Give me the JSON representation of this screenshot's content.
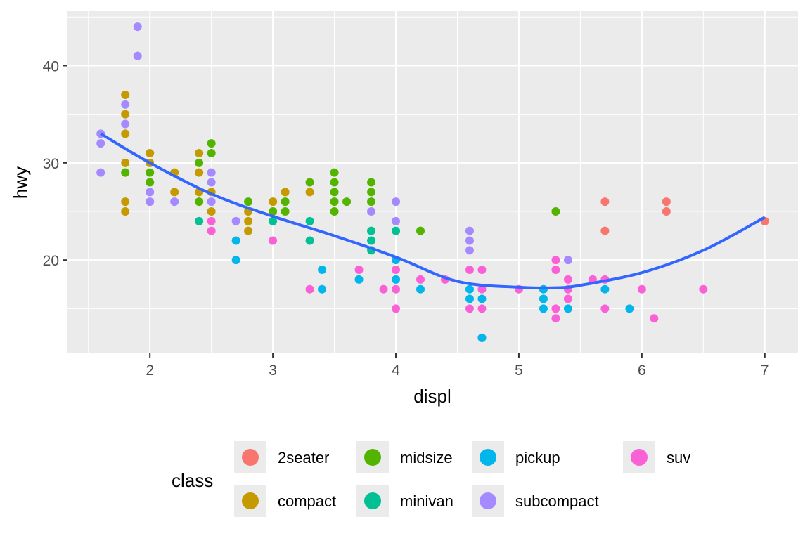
{
  "chart_data": {
    "type": "scatter",
    "xlabel": "displ",
    "ylabel": "hwy",
    "xlim": [
      1.33,
      7.27
    ],
    "ylim": [
      10.4,
      45.6
    ],
    "x_ticks": [
      2,
      3,
      4,
      5,
      6,
      7
    ],
    "y_ticks": [
      20,
      30,
      40
    ],
    "grid": true,
    "legend": {
      "title": "class",
      "placement": "bottom",
      "entries": [
        {
          "name": "2seater",
          "color": "#F8766D"
        },
        {
          "name": "compact",
          "color": "#C49A00"
        },
        {
          "name": "midsize",
          "color": "#53B400"
        },
        {
          "name": "minivan",
          "color": "#00C094"
        },
        {
          "name": "pickup",
          "color": "#00B6EB"
        },
        {
          "name": "subcompact",
          "color": "#A58AFF"
        },
        {
          "name": "suv",
          "color": "#FB61D7"
        }
      ]
    },
    "points": [
      [
        1.6,
        33,
        "subcompact"
      ],
      [
        1.6,
        32,
        "subcompact"
      ],
      [
        1.6,
        29,
        "subcompact"
      ],
      [
        1.8,
        37,
        "compact"
      ],
      [
        1.8,
        35,
        "compact"
      ],
      [
        1.8,
        33,
        "compact"
      ],
      [
        1.8,
        36,
        "subcompact"
      ],
      [
        1.8,
        34,
        "subcompact"
      ],
      [
        1.8,
        30,
        "compact"
      ],
      [
        1.8,
        29,
        "midsize"
      ],
      [
        1.8,
        26,
        "compact"
      ],
      [
        1.8,
        25,
        "compact"
      ],
      [
        1.9,
        44,
        "subcompact"
      ],
      [
        1.9,
        41,
        "subcompact"
      ],
      [
        2.0,
        31,
        "compact"
      ],
      [
        2.0,
        30,
        "compact"
      ],
      [
        2.0,
        29,
        "midsize"
      ],
      [
        2.0,
        28,
        "midsize"
      ],
      [
        2.0,
        27,
        "subcompact"
      ],
      [
        2.0,
        26,
        "subcompact"
      ],
      [
        2.2,
        29,
        "compact"
      ],
      [
        2.2,
        27,
        "compact"
      ],
      [
        2.2,
        26,
        "subcompact"
      ],
      [
        2.4,
        31,
        "compact"
      ],
      [
        2.4,
        30,
        "midsize"
      ],
      [
        2.4,
        29,
        "compact"
      ],
      [
        2.4,
        27,
        "compact"
      ],
      [
        2.4,
        26,
        "midsize"
      ],
      [
        2.4,
        24,
        "minivan"
      ],
      [
        2.5,
        32,
        "midsize"
      ],
      [
        2.5,
        31,
        "midsize"
      ],
      [
        2.5,
        29,
        "subcompact"
      ],
      [
        2.5,
        28,
        "subcompact"
      ],
      [
        2.5,
        27,
        "compact"
      ],
      [
        2.5,
        26,
        "subcompact"
      ],
      [
        2.5,
        25,
        "compact"
      ],
      [
        2.5,
        24,
        "suv"
      ],
      [
        2.5,
        23,
        "suv"
      ],
      [
        2.7,
        24,
        "subcompact"
      ],
      [
        2.7,
        22,
        "pickup"
      ],
      [
        2.7,
        20,
        "pickup"
      ],
      [
        2.8,
        26,
        "midsize"
      ],
      [
        2.8,
        25,
        "compact"
      ],
      [
        2.8,
        24,
        "compact"
      ],
      [
        2.8,
        23,
        "compact"
      ],
      [
        3.0,
        26,
        "compact"
      ],
      [
        3.0,
        25,
        "midsize"
      ],
      [
        3.0,
        24,
        "minivan"
      ],
      [
        3.0,
        22,
        "suv"
      ],
      [
        3.1,
        27,
        "compact"
      ],
      [
        3.1,
        26,
        "midsize"
      ],
      [
        3.1,
        25,
        "midsize"
      ],
      [
        3.3,
        28,
        "midsize"
      ],
      [
        3.3,
        27,
        "compact"
      ],
      [
        3.3,
        24,
        "minivan"
      ],
      [
        3.3,
        22,
        "minivan"
      ],
      [
        3.3,
        17,
        "suv"
      ],
      [
        3.4,
        19,
        "pickup"
      ],
      [
        3.4,
        17,
        "pickup"
      ],
      [
        3.5,
        29,
        "midsize"
      ],
      [
        3.5,
        28,
        "midsize"
      ],
      [
        3.5,
        27,
        "midsize"
      ],
      [
        3.5,
        26,
        "midsize"
      ],
      [
        3.5,
        25,
        "midsize"
      ],
      [
        3.6,
        26,
        "midsize"
      ],
      [
        3.7,
        19,
        "suv"
      ],
      [
        3.7,
        18,
        "pickup"
      ],
      [
        3.8,
        28,
        "midsize"
      ],
      [
        3.8,
        27,
        "midsize"
      ],
      [
        3.8,
        26,
        "midsize"
      ],
      [
        3.8,
        25,
        "subcompact"
      ],
      [
        3.8,
        23,
        "minivan"
      ],
      [
        3.8,
        22,
        "minivan"
      ],
      [
        3.8,
        21,
        "minivan"
      ],
      [
        3.9,
        17,
        "suv"
      ],
      [
        4.0,
        26,
        "subcompact"
      ],
      [
        4.0,
        24,
        "subcompact"
      ],
      [
        4.0,
        23,
        "minivan"
      ],
      [
        4.0,
        20,
        "pickup"
      ],
      [
        4.0,
        19,
        "suv"
      ],
      [
        4.0,
        18,
        "pickup"
      ],
      [
        4.0,
        17,
        "suv"
      ],
      [
        4.0,
        15,
        "suv"
      ],
      [
        4.2,
        23,
        "midsize"
      ],
      [
        4.2,
        18,
        "suv"
      ],
      [
        4.2,
        17,
        "pickup"
      ],
      [
        4.4,
        18,
        "suv"
      ],
      [
        4.6,
        23,
        "subcompact"
      ],
      [
        4.6,
        22,
        "subcompact"
      ],
      [
        4.6,
        21,
        "subcompact"
      ],
      [
        4.6,
        19,
        "suv"
      ],
      [
        4.6,
        17,
        "pickup"
      ],
      [
        4.6,
        16,
        "pickup"
      ],
      [
        4.6,
        15,
        "suv"
      ],
      [
        4.7,
        19,
        "suv"
      ],
      [
        4.7,
        17,
        "suv"
      ],
      [
        4.7,
        16,
        "pickup"
      ],
      [
        4.7,
        15,
        "suv"
      ],
      [
        4.7,
        12,
        "suv"
      ],
      [
        4.7,
        12,
        "pickup"
      ],
      [
        5.0,
        17,
        "suv"
      ],
      [
        5.2,
        17,
        "pickup"
      ],
      [
        5.2,
        16,
        "pickup"
      ],
      [
        5.2,
        15,
        "pickup"
      ],
      [
        5.3,
        25,
        "midsize"
      ],
      [
        5.3,
        20,
        "suv"
      ],
      [
        5.3,
        19,
        "suv"
      ],
      [
        5.3,
        15,
        "suv"
      ],
      [
        5.3,
        14,
        "suv"
      ],
      [
        5.4,
        20,
        "subcompact"
      ],
      [
        5.4,
        18,
        "suv"
      ],
      [
        5.4,
        17,
        "suv"
      ],
      [
        5.4,
        16,
        "suv"
      ],
      [
        5.4,
        15,
        "pickup"
      ],
      [
        5.6,
        18,
        "suv"
      ],
      [
        5.7,
        26,
        "2seater"
      ],
      [
        5.7,
        23,
        "2seater"
      ],
      [
        5.7,
        18,
        "suv"
      ],
      [
        5.7,
        17,
        "pickup"
      ],
      [
        5.7,
        15,
        "suv"
      ],
      [
        5.9,
        15,
        "pickup"
      ],
      [
        6.0,
        17,
        "suv"
      ],
      [
        6.1,
        14,
        "suv"
      ],
      [
        6.2,
        26,
        "2seater"
      ],
      [
        6.2,
        25,
        "2seater"
      ],
      [
        6.5,
        17,
        "suv"
      ],
      [
        7.0,
        24,
        "2seater"
      ]
    ],
    "smooth": {
      "color": "#3366FF",
      "x": [
        1.6,
        2.0,
        2.5,
        3.0,
        3.5,
        4.0,
        4.5,
        5.0,
        5.3,
        5.5,
        6.0,
        6.5,
        7.0
      ],
      "y": [
        33,
        30,
        26.8,
        24.5,
        22.5,
        20.3,
        17.8,
        17.2,
        17.15,
        17.4,
        18.7,
        21,
        24.4
      ]
    }
  }
}
